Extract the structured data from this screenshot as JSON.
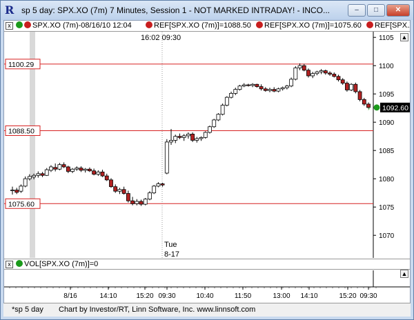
{
  "window": {
    "icon_letter": "R",
    "title": "sp 5 day: SPX.XO (7m) 7 Minutes, Session 1 - NOT MARKED INTRADAY! - INCO...",
    "minimize": "–",
    "maximize": "□",
    "close": "✕"
  },
  "legend": {
    "main": "SPX.XO (7m)-08/16/10 12:04",
    "ref1": "REF[SPX.XO (7m)]=1088.50",
    "ref2": "REF[SPX.XO (7m)]=1075.60",
    "ref3": "REF[SPX.X",
    "close_btn": "x",
    "vol": "VOL[SPX.XO (7m)]=0",
    "vol_close_btn": "x"
  },
  "cursor_time": "16:02  09:30",
  "day_marker": {
    "day": "Tue",
    "date": "8-17"
  },
  "scroll_up": "▲",
  "scroll_down": "▼",
  "status": {
    "tab": "*sp 5 day",
    "credit": "Chart by Investor/RT, Linn Software, Inc. www.linnsoft.com"
  },
  "colors": {
    "up_candle": "#ffffff",
    "down_candle": "#b22222",
    "ref_line": "#d62020",
    "current_price_bg": "#000000",
    "marker_green": "#1b9a1b"
  },
  "chart_data": {
    "type": "candlestick",
    "symbol": "SPX.XO",
    "interval": "7m",
    "ylim": [
      1066,
      1106
    ],
    "y_ticks": [
      1070,
      1075,
      1080,
      1085,
      1090,
      1095,
      1100,
      1105
    ],
    "x_ticks": [
      "8/16",
      "14:10",
      "15:20",
      "09:30",
      "10:40",
      "11:50",
      "13:00",
      "14:10",
      "15:20",
      "09:30"
    ],
    "reference_lines": [
      {
        "label": "1100.29",
        "value": 1100.29
      },
      {
        "label": "1088.50",
        "value": 1088.5
      },
      {
        "label": "1075.60",
        "value": 1075.6
      }
    ],
    "current_price": {
      "label": "1092.60",
      "value": 1092.6
    },
    "candles": [
      {
        "o": 1077.9,
        "h": 1078.6,
        "l": 1077.2,
        "c": 1078.0
      },
      {
        "o": 1078.0,
        "h": 1078.4,
        "l": 1077.3,
        "c": 1077.6
      },
      {
        "o": 1077.8,
        "h": 1079.0,
        "l": 1077.5,
        "c": 1078.7
      },
      {
        "o": 1078.7,
        "h": 1080.4,
        "l": 1078.5,
        "c": 1080.0
      },
      {
        "o": 1080.0,
        "h": 1080.8,
        "l": 1079.7,
        "c": 1080.4
      },
      {
        "o": 1080.3,
        "h": 1080.9,
        "l": 1079.9,
        "c": 1080.6
      },
      {
        "o": 1080.6,
        "h": 1081.3,
        "l": 1080.2,
        "c": 1080.9
      },
      {
        "o": 1080.9,
        "h": 1081.2,
        "l": 1080.3,
        "c": 1080.6
      },
      {
        "o": 1080.6,
        "h": 1081.9,
        "l": 1080.5,
        "c": 1081.6
      },
      {
        "o": 1081.5,
        "h": 1082.4,
        "l": 1081.2,
        "c": 1082.1
      },
      {
        "o": 1082.0,
        "h": 1082.7,
        "l": 1081.3,
        "c": 1081.7
      },
      {
        "o": 1081.7,
        "h": 1082.8,
        "l": 1081.5,
        "c": 1082.5
      },
      {
        "o": 1082.5,
        "h": 1082.9,
        "l": 1081.9,
        "c": 1082.1
      },
      {
        "o": 1082.1,
        "h": 1082.3,
        "l": 1081.0,
        "c": 1081.3
      },
      {
        "o": 1081.3,
        "h": 1081.9,
        "l": 1081.0,
        "c": 1081.7
      },
      {
        "o": 1081.7,
        "h": 1082.2,
        "l": 1081.4,
        "c": 1081.9
      },
      {
        "o": 1081.9,
        "h": 1082.2,
        "l": 1081.2,
        "c": 1081.5
      },
      {
        "o": 1081.5,
        "h": 1081.9,
        "l": 1081.1,
        "c": 1081.7
      },
      {
        "o": 1081.7,
        "h": 1082.0,
        "l": 1081.2,
        "c": 1081.4
      },
      {
        "o": 1081.4,
        "h": 1081.8,
        "l": 1080.6,
        "c": 1080.8
      },
      {
        "o": 1080.8,
        "h": 1081.5,
        "l": 1080.5,
        "c": 1081.2
      },
      {
        "o": 1081.2,
        "h": 1081.6,
        "l": 1080.3,
        "c": 1080.5
      },
      {
        "o": 1080.5,
        "h": 1080.9,
        "l": 1079.6,
        "c": 1079.8
      },
      {
        "o": 1079.8,
        "h": 1080.1,
        "l": 1078.4,
        "c": 1078.6
      },
      {
        "o": 1078.6,
        "h": 1079.0,
        "l": 1077.5,
        "c": 1077.8
      },
      {
        "o": 1077.8,
        "h": 1078.4,
        "l": 1077.3,
        "c": 1078.1
      },
      {
        "o": 1078.1,
        "h": 1078.6,
        "l": 1077.2,
        "c": 1077.4
      },
      {
        "o": 1077.4,
        "h": 1077.9,
        "l": 1075.8,
        "c": 1076.1
      },
      {
        "o": 1076.1,
        "h": 1076.8,
        "l": 1075.3,
        "c": 1075.6
      },
      {
        "o": 1075.6,
        "h": 1076.4,
        "l": 1075.3,
        "c": 1076.0
      },
      {
        "o": 1076.0,
        "h": 1076.3,
        "l": 1075.2,
        "c": 1075.5
      },
      {
        "o": 1075.5,
        "h": 1076.6,
        "l": 1075.3,
        "c": 1076.4
      },
      {
        "o": 1076.4,
        "h": 1077.8,
        "l": 1076.2,
        "c": 1077.5
      },
      {
        "o": 1077.5,
        "h": 1078.9,
        "l": 1077.3,
        "c": 1078.7
      },
      {
        "o": 1078.7,
        "h": 1079.4,
        "l": 1078.5,
        "c": 1079.1
      },
      {
        "o": 1079.1,
        "h": 1079.3,
        "l": 1078.6,
        "c": 1078.9
      },
      {
        "o": 1081.0,
        "h": 1087.0,
        "l": 1080.8,
        "c": 1086.5
      },
      {
        "o": 1086.5,
        "h": 1088.8,
        "l": 1086.0,
        "c": 1086.8
      },
      {
        "o": 1086.8,
        "h": 1087.8,
        "l": 1086.3,
        "c": 1087.5
      },
      {
        "o": 1087.5,
        "h": 1088.0,
        "l": 1087.0,
        "c": 1087.3
      },
      {
        "o": 1087.3,
        "h": 1087.9,
        "l": 1086.7,
        "c": 1087.6
      },
      {
        "o": 1087.6,
        "h": 1088.2,
        "l": 1087.1,
        "c": 1087.9
      },
      {
        "o": 1087.9,
        "h": 1088.2,
        "l": 1086.5,
        "c": 1086.8
      },
      {
        "o": 1086.8,
        "h": 1087.4,
        "l": 1086.4,
        "c": 1087.1
      },
      {
        "o": 1087.1,
        "h": 1087.5,
        "l": 1086.7,
        "c": 1087.3
      },
      {
        "o": 1087.3,
        "h": 1088.4,
        "l": 1087.1,
        "c": 1088.2
      },
      {
        "o": 1088.2,
        "h": 1089.4,
        "l": 1088.0,
        "c": 1089.2
      },
      {
        "o": 1089.2,
        "h": 1090.6,
        "l": 1089.0,
        "c": 1090.4
      },
      {
        "o": 1090.4,
        "h": 1091.6,
        "l": 1090.2,
        "c": 1091.4
      },
      {
        "o": 1091.4,
        "h": 1093.3,
        "l": 1091.2,
        "c": 1093.0
      },
      {
        "o": 1093.0,
        "h": 1094.6,
        "l": 1092.8,
        "c": 1094.4
      },
      {
        "o": 1094.4,
        "h": 1095.4,
        "l": 1094.2,
        "c": 1095.1
      },
      {
        "o": 1095.1,
        "h": 1096.1,
        "l": 1094.8,
        "c": 1095.8
      },
      {
        "o": 1095.8,
        "h": 1096.6,
        "l": 1095.6,
        "c": 1096.4
      },
      {
        "o": 1096.4,
        "h": 1096.9,
        "l": 1096.2,
        "c": 1096.6
      },
      {
        "o": 1096.6,
        "h": 1096.8,
        "l": 1096.3,
        "c": 1096.5
      },
      {
        "o": 1096.5,
        "h": 1096.9,
        "l": 1096.2,
        "c": 1096.7
      },
      {
        "o": 1096.7,
        "h": 1096.8,
        "l": 1096.1,
        "c": 1096.3
      },
      {
        "o": 1096.3,
        "h": 1096.7,
        "l": 1095.6,
        "c": 1095.9
      },
      {
        "o": 1095.9,
        "h": 1096.2,
        "l": 1095.4,
        "c": 1095.6
      },
      {
        "o": 1095.6,
        "h": 1096.1,
        "l": 1095.3,
        "c": 1095.8
      },
      {
        "o": 1095.8,
        "h": 1096.2,
        "l": 1095.3,
        "c": 1095.5
      },
      {
        "o": 1095.5,
        "h": 1096.1,
        "l": 1095.3,
        "c": 1095.9
      },
      {
        "o": 1095.9,
        "h": 1096.3,
        "l": 1095.6,
        "c": 1096.1
      },
      {
        "o": 1096.1,
        "h": 1096.6,
        "l": 1095.8,
        "c": 1096.4
      },
      {
        "o": 1096.4,
        "h": 1097.9,
        "l": 1096.2,
        "c": 1097.6
      },
      {
        "o": 1097.6,
        "h": 1099.9,
        "l": 1097.4,
        "c": 1099.6
      },
      {
        "o": 1099.6,
        "h": 1100.4,
        "l": 1099.2,
        "c": 1100.0
      },
      {
        "o": 1100.0,
        "h": 1100.3,
        "l": 1099.0,
        "c": 1099.2
      },
      {
        "o": 1099.2,
        "h": 1099.5,
        "l": 1097.9,
        "c": 1098.2
      },
      {
        "o": 1098.2,
        "h": 1098.9,
        "l": 1097.8,
        "c": 1098.6
      },
      {
        "o": 1098.6,
        "h": 1099.1,
        "l": 1098.3,
        "c": 1098.9
      },
      {
        "o": 1098.9,
        "h": 1099.4,
        "l": 1098.5,
        "c": 1099.1
      },
      {
        "o": 1099.1,
        "h": 1099.3,
        "l": 1098.4,
        "c": 1098.7
      },
      {
        "o": 1098.7,
        "h": 1099.0,
        "l": 1098.2,
        "c": 1098.5
      },
      {
        "o": 1098.5,
        "h": 1098.8,
        "l": 1097.9,
        "c": 1098.1
      },
      {
        "o": 1098.1,
        "h": 1098.4,
        "l": 1097.2,
        "c": 1097.5
      },
      {
        "o": 1097.5,
        "h": 1097.8,
        "l": 1096.6,
        "c": 1096.9
      },
      {
        "o": 1096.9,
        "h": 1097.2,
        "l": 1095.4,
        "c": 1095.7
      },
      {
        "o": 1095.7,
        "h": 1096.9,
        "l": 1095.5,
        "c": 1096.7
      },
      {
        "o": 1096.7,
        "h": 1097.0,
        "l": 1095.1,
        "c": 1095.4
      },
      {
        "o": 1095.4,
        "h": 1095.7,
        "l": 1093.7,
        "c": 1094.0
      },
      {
        "o": 1094.0,
        "h": 1094.3,
        "l": 1092.9,
        "c": 1093.2
      },
      {
        "o": 1093.2,
        "h": 1093.5,
        "l": 1092.4,
        "c": 1092.6
      }
    ]
  }
}
